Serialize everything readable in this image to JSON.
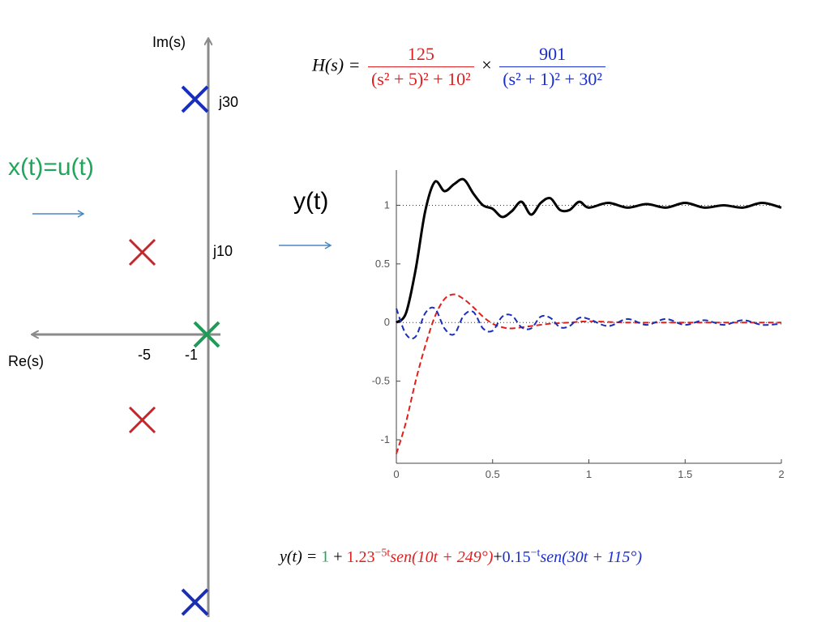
{
  "pole_zero": {
    "im_axis_label": "Im(s)",
    "re_axis_label": "Re(s)",
    "j30_label": "j30",
    "j10_label": "j10",
    "re_tick_minus5": "-5",
    "re_tick_minus1": "-1",
    "red_color": "#c0282d",
    "blue_color": "#1a2fb8",
    "green_color": "#1f9a57"
  },
  "input_label": "x(t)=u(t)",
  "output_label": "y(t)",
  "transfer_function": {
    "lhs": "H(s) =",
    "num1": "125",
    "den1": "(s² + 5)² + 10²",
    "times": "×",
    "num2": "901",
    "den2": "(s² + 1)² + 30²"
  },
  "response_equation": {
    "lhs": "y(t) = ",
    "term1": "1",
    "plus1": " + ",
    "coef2": "1.23",
    "exp2": "−5t",
    "sin2": "sen(10t + 249°)",
    "plus2": "+",
    "coef3": "0.15",
    "exp3": "−t",
    "sin3": "sen(30t + 115°)"
  },
  "chart_data": {
    "type": "line",
    "xlim": [
      0,
      2
    ],
    "ylim": [
      -1.2,
      1.3
    ],
    "x_ticks": [
      "0",
      "0.5",
      "1",
      "1.5",
      "2"
    ],
    "y_ticks": [
      "1",
      "0.5",
      "0",
      "-0.5",
      "-1"
    ],
    "reference_lines": [
      1,
      0
    ],
    "grid": false,
    "series": [
      {
        "style": "solid",
        "color": "#000000",
        "x": [
          0,
          0.05,
          0.1,
          0.15,
          0.2,
          0.25,
          0.3,
          0.35,
          0.4,
          0.45,
          0.5,
          0.55,
          0.6,
          0.65,
          0.7,
          0.75,
          0.8,
          0.85,
          0.9,
          0.95,
          1.0,
          1.1,
          1.2,
          1.3,
          1.4,
          1.5,
          1.6,
          1.7,
          1.8,
          1.9,
          2.0
        ],
        "y": [
          0,
          0.08,
          0.45,
          0.95,
          1.2,
          1.12,
          1.18,
          1.22,
          1.1,
          1.0,
          0.97,
          0.9,
          0.95,
          1.03,
          0.92,
          1.02,
          1.06,
          0.96,
          0.96,
          1.03,
          0.98,
          1.02,
          0.98,
          1.01,
          0.98,
          1.02,
          0.98,
          1.0,
          0.98,
          1.02,
          0.98
        ]
      },
      {
        "style": "dashed",
        "color": "#e0201b",
        "x": [
          0,
          0.05,
          0.1,
          0.15,
          0.2,
          0.25,
          0.3,
          0.35,
          0.4,
          0.45,
          0.5,
          0.55,
          0.6,
          0.7,
          0.8,
          0.9,
          1.0,
          1.2,
          1.4,
          1.6,
          1.8,
          2.0
        ],
        "y": [
          -1.12,
          -0.85,
          -0.5,
          -0.2,
          0.05,
          0.2,
          0.24,
          0.2,
          0.13,
          0.05,
          -0.01,
          -0.04,
          -0.05,
          -0.03,
          -0.01,
          0.0,
          0.01,
          0.0,
          0.0,
          0.0,
          0.0,
          0.0
        ]
      },
      {
        "style": "dashed",
        "color": "#1a2fb8",
        "x": [
          0,
          0.05,
          0.1,
          0.15,
          0.2,
          0.25,
          0.3,
          0.35,
          0.4,
          0.45,
          0.5,
          0.55,
          0.6,
          0.65,
          0.7,
          0.75,
          0.8,
          0.85,
          0.9,
          0.95,
          1.0,
          1.1,
          1.2,
          1.3,
          1.4,
          1.5,
          1.6,
          1.7,
          1.8,
          1.9,
          2.0
        ],
        "y": [
          0.12,
          -0.1,
          -0.12,
          0.08,
          0.12,
          -0.05,
          -0.1,
          0.06,
          0.09,
          -0.05,
          -0.07,
          0.05,
          0.06,
          -0.04,
          -0.05,
          0.05,
          0.04,
          -0.04,
          -0.03,
          0.04,
          0.03,
          -0.03,
          0.03,
          -0.02,
          0.03,
          -0.02,
          0.02,
          -0.02,
          0.02,
          -0.02,
          -0.01
        ]
      }
    ]
  }
}
